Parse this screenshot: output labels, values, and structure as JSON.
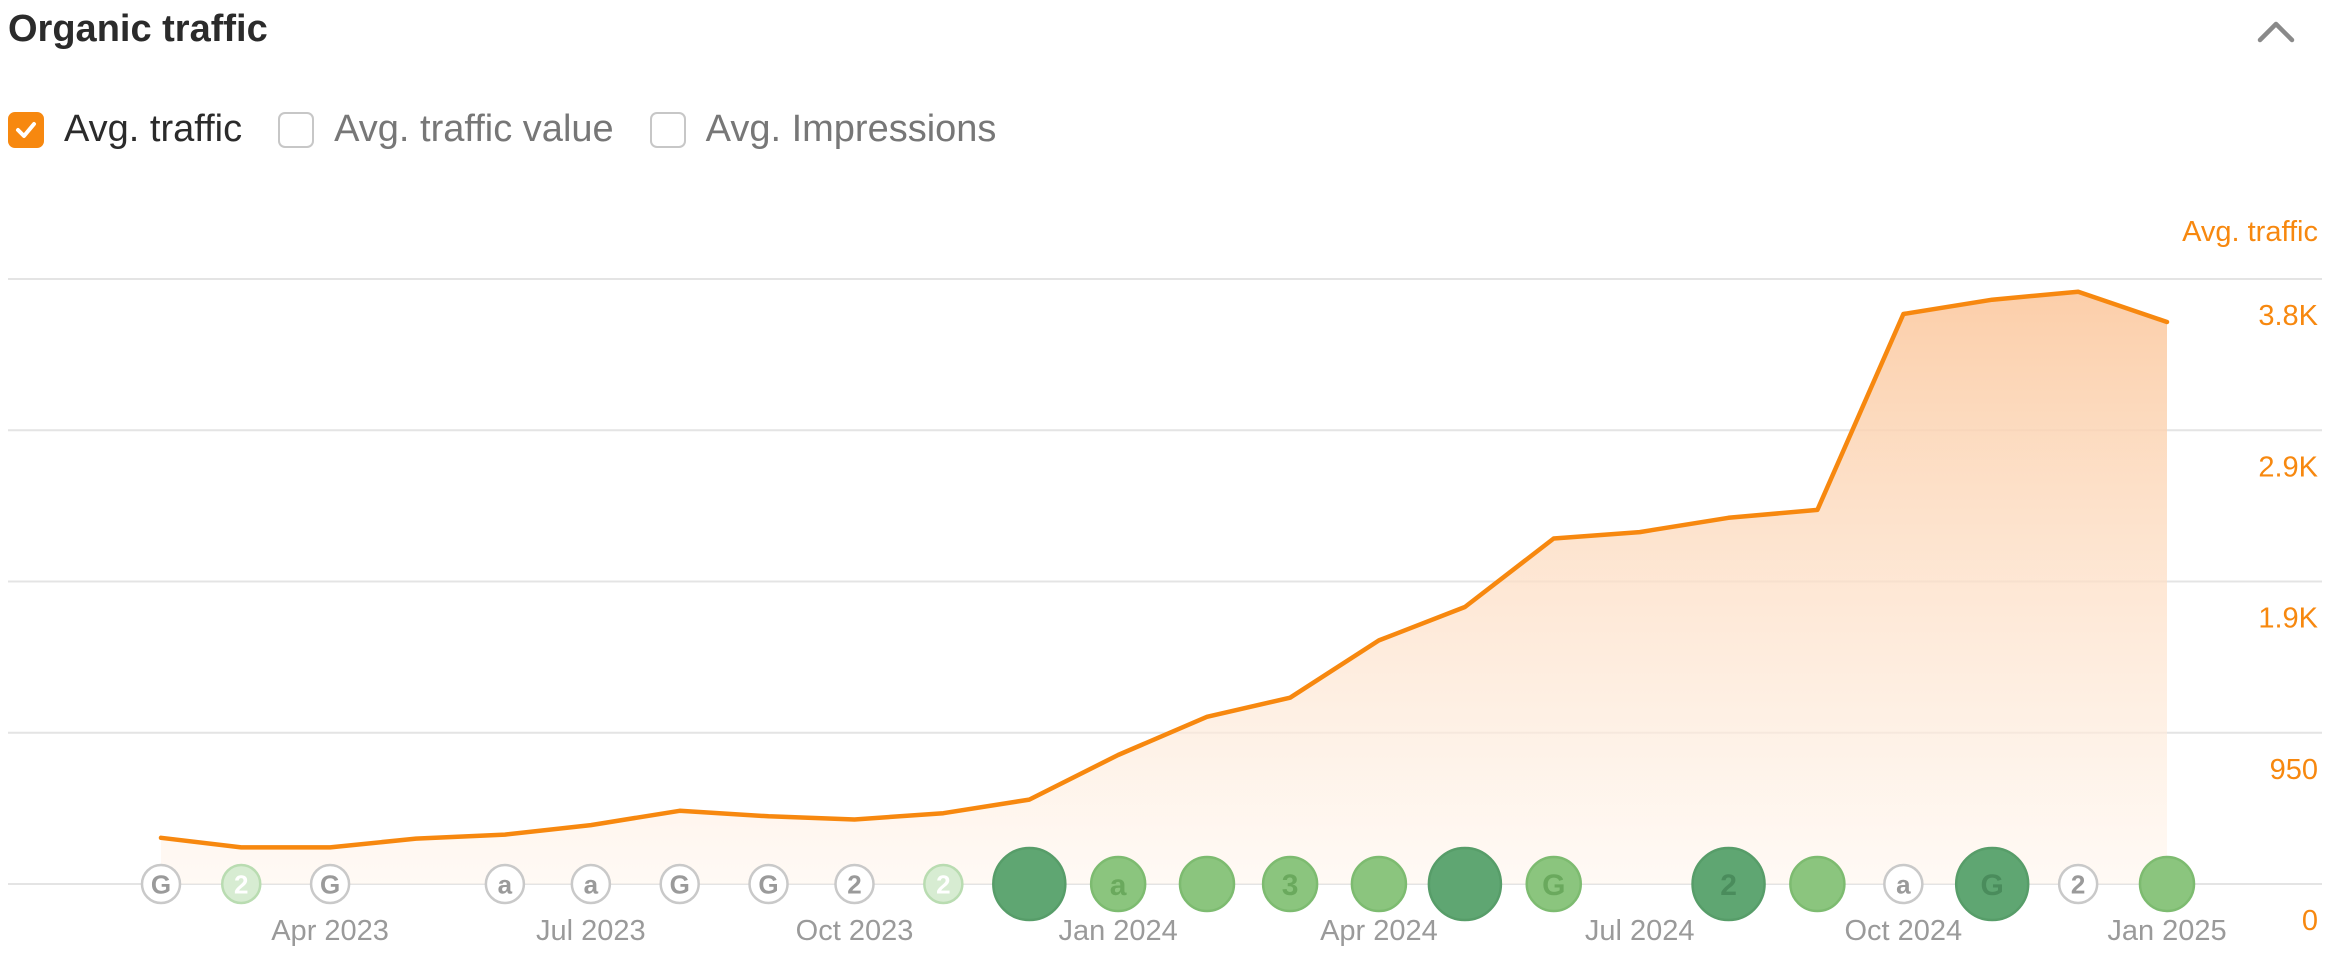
{
  "header": {
    "title": "Organic traffic",
    "collapse_icon": "chevron-up-icon"
  },
  "legend": {
    "options": [
      {
        "label": "Avg. traffic",
        "checked": true
      },
      {
        "label": "Avg. traffic value",
        "checked": false
      },
      {
        "label": "Avg. Impressions",
        "checked": false
      }
    ],
    "accent": "#f7880f"
  },
  "chart_data": {
    "type": "area",
    "ylabel": "Avg. traffic",
    "ylim": [
      0,
      3800
    ],
    "y_ticks": [
      {
        "value": 0,
        "label": "0"
      },
      {
        "value": 950,
        "label": "950"
      },
      {
        "value": 1900,
        "label": "1.9K"
      },
      {
        "value": 2850,
        "label": "2.9K"
      },
      {
        "value": 3800,
        "label": "3.8K"
      }
    ],
    "x_ticks": [
      "Apr 2023",
      "Jul 2023",
      "Oct 2023",
      "Jan 2024",
      "Apr 2024",
      "Jul 2024",
      "Oct 2024",
      "Jan 2025"
    ],
    "x_tick_dates": [
      "2023-04-01",
      "2023-07-01",
      "2023-10-01",
      "2024-01-01",
      "2024-04-01",
      "2024-07-01",
      "2024-10-01",
      "2025-01-01"
    ],
    "grid": true,
    "series": [
      {
        "name": "Avg. traffic",
        "color": "#f7880f",
        "x": [
          "2023-02-01",
          "2023-03-01",
          "2023-04-01",
          "2023-05-01",
          "2023-06-01",
          "2023-07-01",
          "2023-08-01",
          "2023-09-01",
          "2023-10-01",
          "2023-11-01",
          "2023-12-01",
          "2024-01-01",
          "2024-02-01",
          "2024-03-01",
          "2024-04-01",
          "2024-05-01",
          "2024-06-01",
          "2024-07-01",
          "2024-08-01",
          "2024-09-01",
          "2024-10-01",
          "2024-11-01",
          "2024-12-01",
          "2025-01-01"
        ],
        "values": [
          290,
          230,
          230,
          285,
          310,
          370,
          460,
          425,
          405,
          445,
          530,
          810,
          1050,
          1170,
          1530,
          1740,
          2170,
          2210,
          2300,
          2350,
          3580,
          3670,
          3720,
          3530
        ]
      }
    ],
    "annotations": [
      {
        "date": "2023-02-01",
        "label": "G",
        "style": "outline",
        "size": "small"
      },
      {
        "date": "2023-03-01",
        "label": "2",
        "style": "faint",
        "size": "small"
      },
      {
        "date": "2023-04-01",
        "label": "G",
        "style": "outline",
        "size": "small"
      },
      {
        "date": "2023-06-01",
        "label": "a",
        "style": "outline",
        "size": "small"
      },
      {
        "date": "2023-07-01",
        "label": "a",
        "style": "outline",
        "size": "small"
      },
      {
        "date": "2023-08-01",
        "label": "G",
        "style": "outline",
        "size": "small"
      },
      {
        "date": "2023-09-01",
        "label": "G",
        "style": "outline",
        "size": "small"
      },
      {
        "date": "2023-10-01",
        "label": "2",
        "style": "outline",
        "size": "small"
      },
      {
        "date": "2023-11-01",
        "label": "2",
        "style": "faint",
        "size": "small"
      },
      {
        "date": "2023-12-01",
        "label": "",
        "style": "dark",
        "size": "large"
      },
      {
        "date": "2024-01-01",
        "label": "a",
        "style": "light",
        "size": "medium"
      },
      {
        "date": "2024-02-01",
        "label": "",
        "style": "light",
        "size": "medium"
      },
      {
        "date": "2024-03-01",
        "label": "3",
        "style": "light",
        "size": "medium"
      },
      {
        "date": "2024-04-01",
        "label": "",
        "style": "light",
        "size": "medium"
      },
      {
        "date": "2024-05-01",
        "label": "",
        "style": "dark",
        "size": "large"
      },
      {
        "date": "2024-06-01",
        "label": "G",
        "style": "light",
        "size": "medium"
      },
      {
        "date": "2024-08-01",
        "label": "2",
        "style": "dark",
        "size": "large"
      },
      {
        "date": "2024-09-01",
        "label": "",
        "style": "light",
        "size": "medium"
      },
      {
        "date": "2024-10-01",
        "label": "a",
        "style": "outline",
        "size": "small"
      },
      {
        "date": "2024-11-01",
        "label": "G",
        "style": "dark",
        "size": "large"
      },
      {
        "date": "2024-12-01",
        "label": "2",
        "style": "outline",
        "size": "small"
      },
      {
        "date": "2025-01-01",
        "label": "",
        "style": "light",
        "size": "medium"
      }
    ]
  }
}
